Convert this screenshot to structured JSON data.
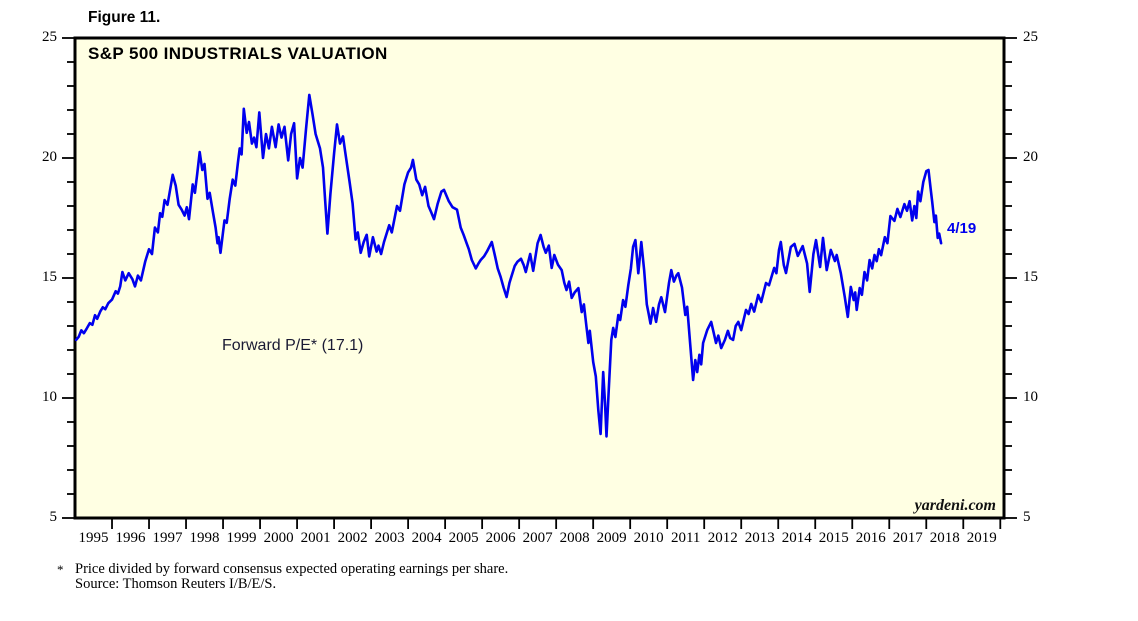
{
  "figure_label": "Figure 11.",
  "chart_title": "S&P 500 INDUSTRIALS VALUATION",
  "annotation_label": "Forward P/E* (17.1)",
  "end_point_label": "4/19",
  "watermark": "yardeni.com",
  "footnote": {
    "marker": "*",
    "line1": "Price divided by forward consensus expected operating earnings per share.",
    "line2": "Source: Thomson Reuters I/B/E/S."
  },
  "colors": {
    "line": "#0000ee",
    "plot_background": "#ffffe3",
    "frame": "#000000",
    "annotation_text": "#1a1a33",
    "end_label_text": "#0000ee"
  },
  "chart_data": {
    "type": "line",
    "title": "S&P 500 INDUSTRIALS VALUATION",
    "series_name": "Forward P/E (S&P 500 Industrials)",
    "latest_value": 17.1,
    "latest_date_label": "4/19",
    "legend_position": "none",
    "grid": false,
    "x_axis": {
      "start": 1995,
      "end": 2020.1,
      "year_labels": [
        1995,
        1996,
        1997,
        1998,
        1999,
        2000,
        2001,
        2002,
        2003,
        2004,
        2005,
        2006,
        2007,
        2008,
        2009,
        2010,
        2011,
        2012,
        2013,
        2014,
        2015,
        2016,
        2017,
        2018,
        2019
      ]
    },
    "y_axis": {
      "min": 5,
      "max": 25,
      "major_ticks": [
        5,
        10,
        15,
        20,
        25
      ],
      "minor_step": 1,
      "labeled_both_sides": true
    },
    "points": [
      [
        1995.03,
        12.42
      ],
      [
        1995.1,
        12.55
      ],
      [
        1995.17,
        12.82
      ],
      [
        1995.24,
        12.7
      ],
      [
        1995.32,
        12.9
      ],
      [
        1995.4,
        13.12
      ],
      [
        1995.47,
        13.05
      ],
      [
        1995.54,
        13.45
      ],
      [
        1995.6,
        13.3
      ],
      [
        1995.68,
        13.6
      ],
      [
        1995.75,
        13.78
      ],
      [
        1995.82,
        13.7
      ],
      [
        1995.9,
        13.95
      ],
      [
        1996.0,
        14.1
      ],
      [
        1996.1,
        14.45
      ],
      [
        1996.16,
        14.35
      ],
      [
        1996.22,
        14.65
      ],
      [
        1996.28,
        15.25
      ],
      [
        1996.36,
        14.9
      ],
      [
        1996.45,
        15.2
      ],
      [
        1996.55,
        14.95
      ],
      [
        1996.62,
        14.65
      ],
      [
        1996.7,
        15.1
      ],
      [
        1996.78,
        14.9
      ],
      [
        1996.9,
        15.7
      ],
      [
        1997.0,
        16.2
      ],
      [
        1997.08,
        16.0
      ],
      [
        1997.16,
        17.1
      ],
      [
        1997.24,
        16.9
      ],
      [
        1997.3,
        17.7
      ],
      [
        1997.36,
        17.55
      ],
      [
        1997.42,
        18.25
      ],
      [
        1997.5,
        18.05
      ],
      [
        1997.64,
        19.3
      ],
      [
        1997.72,
        18.85
      ],
      [
        1997.8,
        18.05
      ],
      [
        1997.88,
        17.85
      ],
      [
        1997.96,
        17.6
      ],
      [
        1998.02,
        17.95
      ],
      [
        1998.08,
        17.45
      ],
      [
        1998.18,
        18.9
      ],
      [
        1998.24,
        18.55
      ],
      [
        1998.3,
        19.3
      ],
      [
        1998.37,
        20.25
      ],
      [
        1998.44,
        19.5
      ],
      [
        1998.5,
        19.75
      ],
      [
        1998.58,
        18.3
      ],
      [
        1998.64,
        18.55
      ],
      [
        1998.72,
        17.8
      ],
      [
        1998.8,
        17.1
      ],
      [
        1998.85,
        16.45
      ],
      [
        1998.88,
        16.7
      ],
      [
        1998.93,
        16.05
      ],
      [
        1999.0,
        16.9
      ],
      [
        1999.04,
        17.4
      ],
      [
        1999.1,
        17.3
      ],
      [
        1999.18,
        18.3
      ],
      [
        1999.26,
        19.1
      ],
      [
        1999.33,
        18.85
      ],
      [
        1999.4,
        19.8
      ],
      [
        1999.45,
        20.4
      ],
      [
        1999.5,
        20.15
      ],
      [
        1999.56,
        22.05
      ],
      [
        1999.64,
        21.05
      ],
      [
        1999.7,
        21.5
      ],
      [
        1999.78,
        20.6
      ],
      [
        1999.84,
        20.85
      ],
      [
        1999.9,
        20.45
      ],
      [
        1999.98,
        21.9
      ],
      [
        2000.08,
        20.0
      ],
      [
        2000.16,
        21.0
      ],
      [
        2000.24,
        20.4
      ],
      [
        2000.32,
        21.3
      ],
      [
        2000.42,
        20.45
      ],
      [
        2000.5,
        21.4
      ],
      [
        2000.58,
        20.85
      ],
      [
        2000.66,
        21.3
      ],
      [
        2000.76,
        19.9
      ],
      [
        2000.84,
        21.0
      ],
      [
        2000.92,
        21.45
      ],
      [
        2001.0,
        19.15
      ],
      [
        2001.08,
        20.0
      ],
      [
        2001.15,
        19.6
      ],
      [
        2001.24,
        21.2
      ],
      [
        2001.33,
        22.63
      ],
      [
        2001.42,
        21.8
      ],
      [
        2001.5,
        21.0
      ],
      [
        2001.56,
        20.7
      ],
      [
        2001.62,
        20.4
      ],
      [
        2001.7,
        19.6
      ],
      [
        2001.76,
        18.2
      ],
      [
        2001.82,
        16.85
      ],
      [
        2001.9,
        18.5
      ],
      [
        2002.0,
        20.2
      ],
      [
        2002.08,
        21.4
      ],
      [
        2002.16,
        20.6
      ],
      [
        2002.24,
        20.9
      ],
      [
        2002.3,
        20.25
      ],
      [
        2002.42,
        19.0
      ],
      [
        2002.5,
        18.1
      ],
      [
        2002.58,
        16.6
      ],
      [
        2002.64,
        16.9
      ],
      [
        2002.72,
        16.05
      ],
      [
        2002.8,
        16.5
      ],
      [
        2002.88,
        16.8
      ],
      [
        2002.95,
        15.9
      ],
      [
        2003.05,
        16.7
      ],
      [
        2003.15,
        16.1
      ],
      [
        2003.2,
        16.35
      ],
      [
        2003.27,
        16.0
      ],
      [
        2003.35,
        16.5
      ],
      [
        2003.49,
        17.2
      ],
      [
        2003.56,
        16.9
      ],
      [
        2003.7,
        18.0
      ],
      [
        2003.78,
        17.8
      ],
      [
        2003.9,
        18.9
      ],
      [
        2004.0,
        19.4
      ],
      [
        2004.08,
        19.6
      ],
      [
        2004.13,
        19.92
      ],
      [
        2004.22,
        19.1
      ],
      [
        2004.3,
        18.9
      ],
      [
        2004.38,
        18.45
      ],
      [
        2004.46,
        18.8
      ],
      [
        2004.55,
        18.0
      ],
      [
        2004.62,
        17.75
      ],
      [
        2004.7,
        17.45
      ],
      [
        2004.8,
        18.1
      ],
      [
        2004.9,
        18.6
      ],
      [
        2004.97,
        18.67
      ],
      [
        2005.1,
        18.2
      ],
      [
        2005.2,
        17.95
      ],
      [
        2005.32,
        17.85
      ],
      [
        2005.42,
        17.1
      ],
      [
        2005.5,
        16.8
      ],
      [
        2005.58,
        16.45
      ],
      [
        2005.64,
        16.2
      ],
      [
        2005.72,
        15.75
      ],
      [
        2005.83,
        15.4
      ],
      [
        2005.9,
        15.6
      ],
      [
        2005.96,
        15.75
      ],
      [
        2006.05,
        15.9
      ],
      [
        2006.13,
        16.1
      ],
      [
        2006.26,
        16.5
      ],
      [
        2006.35,
        15.9
      ],
      [
        2006.42,
        15.4
      ],
      [
        2006.5,
        15.05
      ],
      [
        2006.58,
        14.6
      ],
      [
        2006.66,
        14.21
      ],
      [
        2006.74,
        14.8
      ],
      [
        2006.8,
        15.1
      ],
      [
        2006.88,
        15.5
      ],
      [
        2006.95,
        15.67
      ],
      [
        2007.05,
        15.8
      ],
      [
        2007.12,
        15.55
      ],
      [
        2007.18,
        15.25
      ],
      [
        2007.25,
        15.7
      ],
      [
        2007.3,
        16.0
      ],
      [
        2007.38,
        15.3
      ],
      [
        2007.5,
        16.45
      ],
      [
        2007.58,
        16.79
      ],
      [
        2007.66,
        16.3
      ],
      [
        2007.72,
        16.05
      ],
      [
        2007.8,
        16.35
      ],
      [
        2007.88,
        15.42
      ],
      [
        2007.95,
        15.96
      ],
      [
        2008.05,
        15.55
      ],
      [
        2008.15,
        15.33
      ],
      [
        2008.22,
        14.8
      ],
      [
        2008.28,
        14.5
      ],
      [
        2008.35,
        14.85
      ],
      [
        2008.42,
        14.17
      ],
      [
        2008.5,
        14.4
      ],
      [
        2008.6,
        14.58
      ],
      [
        2008.69,
        13.58
      ],
      [
        2008.75,
        13.9
      ],
      [
        2008.82,
        12.96
      ],
      [
        2008.87,
        12.29
      ],
      [
        2008.91,
        12.8
      ],
      [
        2009.0,
        11.5
      ],
      [
        2009.07,
        10.9
      ],
      [
        2009.14,
        9.5
      ],
      [
        2009.2,
        8.5
      ],
      [
        2009.27,
        11.08
      ],
      [
        2009.32,
        9.8
      ],
      [
        2009.36,
        8.4
      ],
      [
        2009.42,
        10.3
      ],
      [
        2009.49,
        12.42
      ],
      [
        2009.54,
        12.92
      ],
      [
        2009.6,
        12.54
      ],
      [
        2009.68,
        13.46
      ],
      [
        2009.73,
        13.25
      ],
      [
        2009.81,
        14.08
      ],
      [
        2009.87,
        13.8
      ],
      [
        2009.95,
        14.7
      ],
      [
        2010.02,
        15.4
      ],
      [
        2010.08,
        16.3
      ],
      [
        2010.14,
        16.58
      ],
      [
        2010.22,
        15.2
      ],
      [
        2010.3,
        16.5
      ],
      [
        2010.38,
        15.3
      ],
      [
        2010.45,
        13.9
      ],
      [
        2010.5,
        13.5
      ],
      [
        2010.55,
        13.1
      ],
      [
        2010.62,
        13.75
      ],
      [
        2010.7,
        13.17
      ],
      [
        2010.78,
        13.9
      ],
      [
        2010.84,
        14.2
      ],
      [
        2010.94,
        13.58
      ],
      [
        2011.05,
        14.8
      ],
      [
        2011.11,
        15.33
      ],
      [
        2011.18,
        14.85
      ],
      [
        2011.25,
        15.1
      ],
      [
        2011.3,
        15.2
      ],
      [
        2011.4,
        14.6
      ],
      [
        2011.49,
        13.46
      ],
      [
        2011.54,
        13.8
      ],
      [
        2011.62,
        12.29
      ],
      [
        2011.7,
        10.75
      ],
      [
        2011.76,
        11.58
      ],
      [
        2011.81,
        11.08
      ],
      [
        2011.87,
        11.8
      ],
      [
        2011.92,
        11.4
      ],
      [
        2011.97,
        12.29
      ],
      [
        2012.08,
        12.83
      ],
      [
        2012.19,
        13.17
      ],
      [
        2012.27,
        12.63
      ],
      [
        2012.32,
        12.29
      ],
      [
        2012.38,
        12.6
      ],
      [
        2012.46,
        12.08
      ],
      [
        2012.56,
        12.42
      ],
      [
        2012.64,
        12.8
      ],
      [
        2012.7,
        12.5
      ],
      [
        2012.78,
        12.42
      ],
      [
        2012.85,
        13.0
      ],
      [
        2012.92,
        13.17
      ],
      [
        2013.0,
        12.83
      ],
      [
        2013.13,
        13.67
      ],
      [
        2013.2,
        13.5
      ],
      [
        2013.27,
        13.92
      ],
      [
        2013.35,
        13.6
      ],
      [
        2013.46,
        14.29
      ],
      [
        2013.54,
        14.0
      ],
      [
        2013.67,
        14.79
      ],
      [
        2013.75,
        14.7
      ],
      [
        2013.89,
        15.42
      ],
      [
        2013.95,
        15.2
      ],
      [
        2014.02,
        16.17
      ],
      [
        2014.07,
        16.5
      ],
      [
        2014.15,
        15.54
      ],
      [
        2014.21,
        15.21
      ],
      [
        2014.34,
        16.29
      ],
      [
        2014.44,
        16.42
      ],
      [
        2014.53,
        15.92
      ],
      [
        2014.66,
        16.33
      ],
      [
        2014.78,
        15.6
      ],
      [
        2014.85,
        14.42
      ],
      [
        2014.95,
        16.0
      ],
      [
        2015.02,
        16.58
      ],
      [
        2015.13,
        15.46
      ],
      [
        2015.21,
        16.67
      ],
      [
        2015.31,
        15.33
      ],
      [
        2015.42,
        16.17
      ],
      [
        2015.53,
        15.71
      ],
      [
        2015.58,
        15.96
      ],
      [
        2015.69,
        15.2
      ],
      [
        2015.8,
        14.2
      ],
      [
        2015.88,
        13.38
      ],
      [
        2015.96,
        14.63
      ],
      [
        2016.04,
        14.08
      ],
      [
        2016.08,
        14.4
      ],
      [
        2016.12,
        13.67
      ],
      [
        2016.2,
        14.58
      ],
      [
        2016.26,
        14.3
      ],
      [
        2016.33,
        15.25
      ],
      [
        2016.4,
        14.9
      ],
      [
        2016.47,
        15.75
      ],
      [
        2016.54,
        15.4
      ],
      [
        2016.6,
        15.96
      ],
      [
        2016.66,
        15.7
      ],
      [
        2016.72,
        16.2
      ],
      [
        2016.78,
        15.95
      ],
      [
        2016.88,
        16.7
      ],
      [
        2016.95,
        16.45
      ],
      [
        2017.03,
        17.58
      ],
      [
        2017.14,
        17.38
      ],
      [
        2017.22,
        17.88
      ],
      [
        2017.3,
        17.54
      ],
      [
        2017.41,
        18.08
      ],
      [
        2017.48,
        17.8
      ],
      [
        2017.55,
        18.2
      ],
      [
        2017.62,
        17.4
      ],
      [
        2017.68,
        18.0
      ],
      [
        2017.73,
        17.5
      ],
      [
        2017.78,
        18.6
      ],
      [
        2017.84,
        18.2
      ],
      [
        2017.92,
        19.0
      ],
      [
        2018.0,
        19.45
      ],
      [
        2018.06,
        19.5
      ],
      [
        2018.12,
        18.7
      ],
      [
        2018.16,
        18.17
      ],
      [
        2018.22,
        17.33
      ],
      [
        2018.26,
        17.6
      ],
      [
        2018.31,
        16.67
      ],
      [
        2018.35,
        16.85
      ],
      [
        2018.4,
        16.45
      ]
    ]
  }
}
